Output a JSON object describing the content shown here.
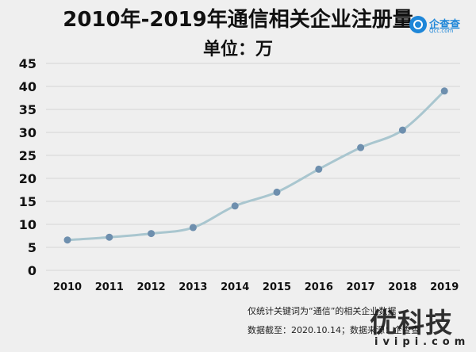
{
  "chart_data": {
    "type": "line",
    "title": "2010年-2019年通信相关企业注册量",
    "subtitle": "单位：万",
    "x": [
      "2010",
      "2011",
      "2012",
      "2013",
      "2014",
      "2015",
      "2016",
      "2017",
      "2018",
      "2019"
    ],
    "series": [
      {
        "values": [
          6.6,
          7.2,
          8.0,
          9.3,
          14.0,
          17.0,
          22.0,
          26.7,
          30.5,
          39.0
        ]
      }
    ],
    "ylim": [
      0,
      45
    ],
    "yticks": [
      0,
      5,
      10,
      15,
      20,
      25,
      30,
      35,
      40,
      45
    ],
    "grid": true,
    "legend": "none",
    "line_color": "#a9c6cf",
    "marker_color": "#6e8fae"
  },
  "logo": {
    "name": "企查查",
    "sub": "Qcc.com"
  },
  "footnotes": [
    "仅统计关键词为“通信”的相关企业数据",
    "数据截至：2020.10.14；数据来源：企查查"
  ],
  "watermark": {
    "main": "优科技",
    "sub": "ivipi.com"
  }
}
